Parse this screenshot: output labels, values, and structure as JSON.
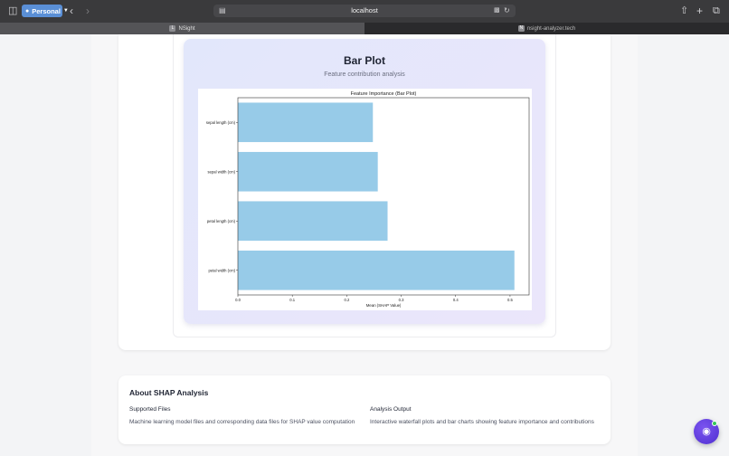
{
  "browser": {
    "profile": "Personal",
    "url": "localhost",
    "tabs": [
      {
        "favicon": "L",
        "label": "NSight",
        "active": true
      },
      {
        "favicon": "N",
        "label": "nsight-analyzer.tech",
        "active": false
      }
    ],
    "icons": [
      "sidebar-icon",
      "person-icon",
      "chevron-down-icon",
      "back-icon",
      "forward-icon",
      "page-icon",
      "translate-icon",
      "reload-icon",
      "share-icon",
      "new-tab-icon",
      "tab-overview-icon"
    ]
  },
  "plot_card": {
    "title": "Bar Plot",
    "subtitle": "Feature contribution analysis"
  },
  "chart_data": {
    "type": "bar",
    "orientation": "horizontal",
    "title": "Feature Importance (Bar Plot)",
    "xlabel": "Mean |SHAP Value|",
    "ylabel": "",
    "categories": [
      "sepal length (cm)",
      "sepal width (cm)",
      "petal length (cm)",
      "petal width (cm)"
    ],
    "values": [
      0.248,
      0.257,
      0.275,
      0.508
    ],
    "xlim": [
      0.0,
      0.535
    ],
    "xticks": [
      0.0,
      0.1,
      0.2,
      0.3,
      0.4,
      0.5
    ],
    "xtick_labels": [
      "0.0",
      "0.1",
      "0.2",
      "0.3",
      "0.4",
      "0.5"
    ],
    "bar_color": "#97cbe8",
    "grid": false
  },
  "about": {
    "title": "About SHAP Analysis",
    "supported_heading": "Supported Files",
    "supported_text": "Machine learning model files and corresponding data files for SHAP value computation",
    "output_heading": "Analysis Output",
    "output_text": "Interactive waterfall plots and bar charts showing feature importance and contributions"
  },
  "assistant_button": {
    "icon": "robot-icon",
    "status_color": "#34c759"
  }
}
